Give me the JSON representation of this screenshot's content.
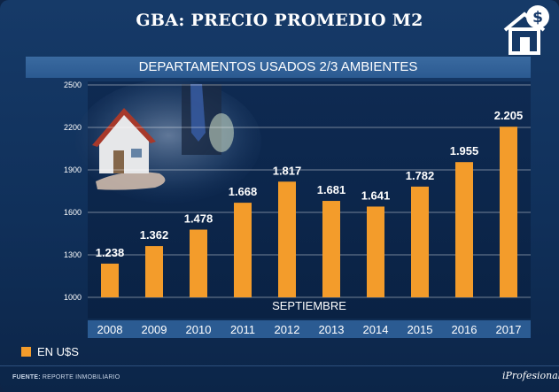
{
  "header": {
    "title": "GBA: PRECIO PROMEDIO M2",
    "logo_icon": "house-dollar-icon"
  },
  "chart_data": {
    "type": "bar",
    "title": "DEPARTAMENTOS USADOS 2/3 AMBIENTES",
    "categories": [
      "2008",
      "2009",
      "2010",
      "2011",
      "2012",
      "2013",
      "2014",
      "2015",
      "2016",
      "2017"
    ],
    "values": [
      1238,
      1362,
      1478,
      1668,
      1817,
      1681,
      1641,
      1782,
      1955,
      2205
    ],
    "value_labels": [
      "1.238",
      "1.362",
      "1.478",
      "1.668",
      "1.817",
      "1.681",
      "1.641",
      "1.782",
      "1.955",
      "2.205"
    ],
    "yticks": [
      1000,
      1300,
      1600,
      1900,
      2200,
      2500
    ],
    "ylim": [
      1000,
      2500
    ],
    "annotation": "SEPTIEMBRE",
    "series_name": "EN U$S",
    "bar_color": "#f39c2b",
    "grid": true,
    "legend_position": "bottom-left",
    "xlabel": "",
    "ylabel": ""
  },
  "footer": {
    "source_label": "FUENTE:",
    "source_text": "REPORTE INMOBILIARIO",
    "brand": "iProfesional"
  }
}
